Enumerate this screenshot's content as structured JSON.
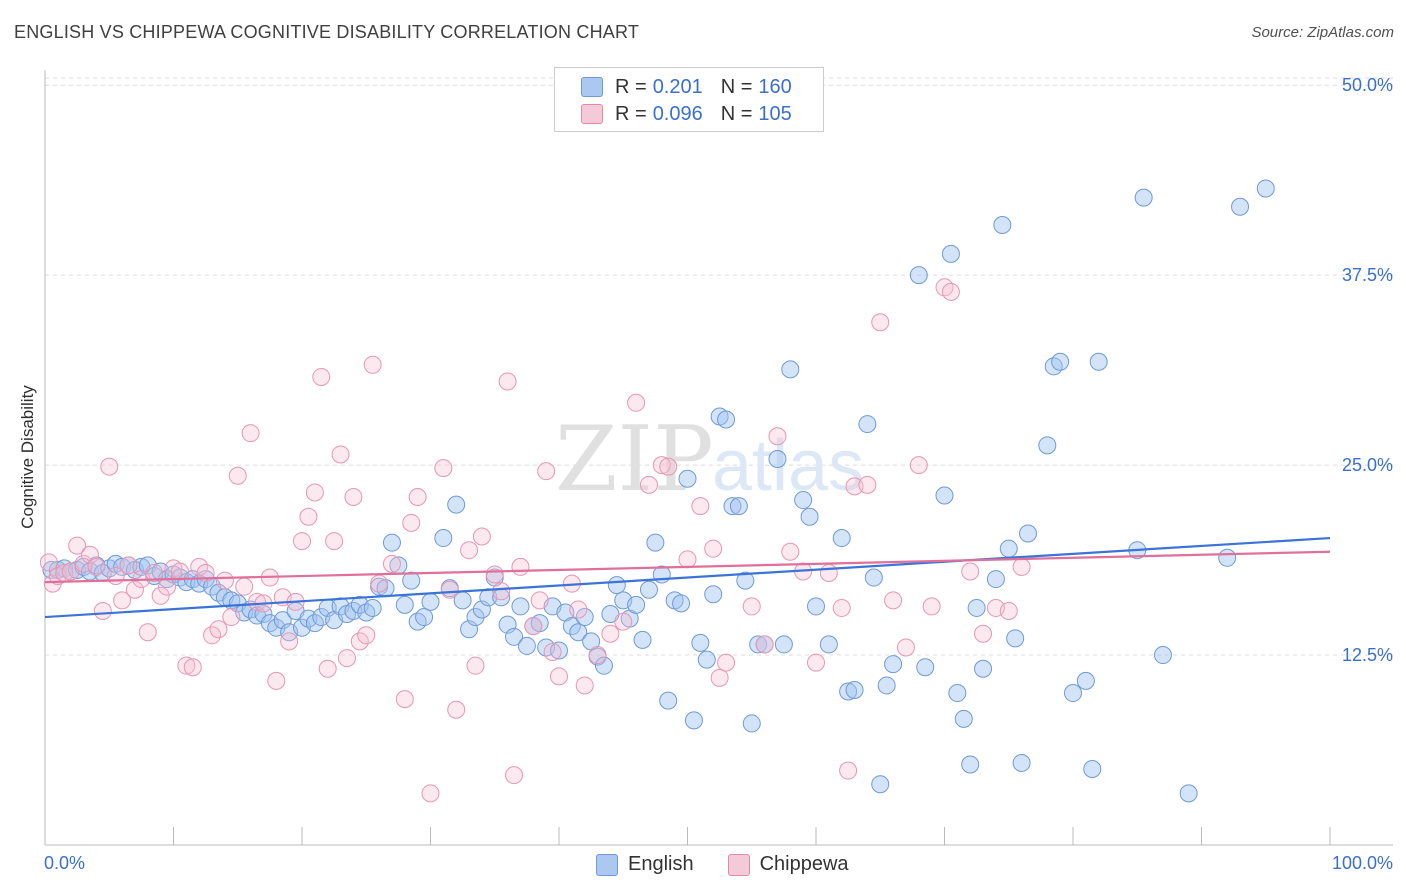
{
  "header": {
    "title": "ENGLISH VS CHIPPEWA COGNITIVE DISABILITY CORRELATION CHART",
    "source": "Source: ZipAtlas.com"
  },
  "watermark": {
    "text_zip": "ZIP",
    "text_atlas": "atlas"
  },
  "legend": {
    "rows": [
      {
        "r_label": "R =",
        "r_value": "0.201",
        "n_label": "N =",
        "n_value": "160",
        "color": "#aac8f0"
      },
      {
        "r_label": "R =",
        "r_value": "0.096",
        "n_label": "N =",
        "n_value": "105",
        "color": "#f5b8cc"
      }
    ]
  },
  "bottom_legend": [
    {
      "label": "English",
      "color": "#aac8f0"
    },
    {
      "label": "Chippewa",
      "color": "#f5b8cc"
    }
  ],
  "chart_data": {
    "type": "scatter",
    "title": "ENGLISH VS CHIPPEWA COGNITIVE DISABILITY CORRELATION CHART",
    "ylabel": "Cognitive Disability",
    "xlabel": "",
    "xlim": [
      0,
      100
    ],
    "ylim": [
      0,
      51
    ],
    "x_tick_labels": [
      "0.0%",
      "100.0%"
    ],
    "y_ticks": [
      12.5,
      25.0,
      37.5,
      50.0
    ],
    "y_tick_labels": [
      "12.5%",
      "25.0%",
      "37.5%",
      "50.0%"
    ],
    "grid": "horizontal dashed",
    "colors": {
      "english": "#3a74d8",
      "chippewa": "#e0709a",
      "axis_text": "#3a6fd0"
    },
    "series": [
      {
        "name": "English",
        "trend": {
          "x": [
            0,
            100
          ],
          "y": [
            15.0,
            20.2
          ]
        },
        "points": [
          [
            0.5,
            18.1
          ],
          [
            1,
            18.1
          ],
          [
            1.5,
            18.2
          ],
          [
            2,
            18.0
          ],
          [
            2.5,
            18.1
          ],
          [
            3,
            18.3
          ],
          [
            3.5,
            18.0
          ],
          [
            4,
            18.4
          ],
          [
            4.5,
            17.9
          ],
          [
            5,
            18.2
          ],
          [
            5.5,
            18.5
          ],
          [
            6,
            18.3
          ],
          [
            6.5,
            18.4
          ],
          [
            7,
            18.1
          ],
          [
            7.5,
            18.3
          ],
          [
            8,
            18.4
          ],
          [
            8.5,
            17.7
          ],
          [
            9,
            18.0
          ],
          [
            9.5,
            17.5
          ],
          [
            10,
            17.8
          ],
          [
            10.5,
            17.6
          ],
          [
            11,
            17.3
          ],
          [
            11.5,
            17.5
          ],
          [
            12,
            17.2
          ],
          [
            12.5,
            17.5
          ],
          [
            13,
            17.0
          ],
          [
            13.5,
            16.6
          ],
          [
            14,
            16.3
          ],
          [
            14.5,
            16.1
          ],
          [
            15,
            15.9
          ],
          [
            15.5,
            15.3
          ],
          [
            16,
            15.5
          ],
          [
            16.5,
            15.1
          ],
          [
            17,
            15.2
          ],
          [
            17.5,
            14.6
          ],
          [
            18,
            14.3
          ],
          [
            18.5,
            14.8
          ],
          [
            19,
            14.0
          ],
          [
            19.5,
            15.4
          ],
          [
            20,
            14.3
          ],
          [
            20.5,
            14.9
          ],
          [
            21,
            14.6
          ],
          [
            21.5,
            15.0
          ],
          [
            22,
            15.6
          ],
          [
            22.5,
            14.8
          ],
          [
            23,
            15.7
          ],
          [
            23.5,
            15.2
          ],
          [
            24,
            15.4
          ],
          [
            24.5,
            15.8
          ],
          [
            25,
            15.3
          ],
          [
            25.5,
            15.6
          ],
          [
            26,
            17.0
          ],
          [
            26.5,
            16.9
          ],
          [
            27,
            19.9
          ],
          [
            27.5,
            18.4
          ],
          [
            28,
            15.8
          ],
          [
            28.5,
            17.4
          ],
          [
            29,
            14.7
          ],
          [
            29.5,
            15.0
          ],
          [
            30,
            16.0
          ],
          [
            31,
            20.2
          ],
          [
            31.5,
            16.9
          ],
          [
            32,
            22.4
          ],
          [
            32.5,
            16.1
          ],
          [
            33,
            14.2
          ],
          [
            33.5,
            15.0
          ],
          [
            34,
            15.5
          ],
          [
            34.5,
            16.3
          ],
          [
            35,
            17.6
          ],
          [
            35.5,
            16.3
          ],
          [
            36,
            14.5
          ],
          [
            36.5,
            13.7
          ],
          [
            37,
            15.7
          ],
          [
            37.5,
            13.1
          ],
          [
            38,
            14.4
          ],
          [
            38.5,
            14.6
          ],
          [
            39,
            13.0
          ],
          [
            39.5,
            15.7
          ],
          [
            40,
            12.8
          ],
          [
            40.5,
            15.3
          ],
          [
            41,
            14.4
          ],
          [
            41.5,
            14.0
          ],
          [
            42,
            15.0
          ],
          [
            42.5,
            13.4
          ],
          [
            43,
            12.4
          ],
          [
            43.5,
            11.8
          ],
          [
            44,
            15.2
          ],
          [
            44.5,
            17.1
          ],
          [
            45,
            16.1
          ],
          [
            45.5,
            14.9
          ],
          [
            46,
            15.8
          ],
          [
            46.5,
            13.5
          ],
          [
            47,
            16.8
          ],
          [
            47.5,
            19.9
          ],
          [
            48,
            17.8
          ],
          [
            48.5,
            9.5
          ],
          [
            49,
            16.1
          ],
          [
            49.5,
            15.9
          ],
          [
            50,
            24.1
          ],
          [
            50.5,
            8.2
          ],
          [
            51,
            13.3
          ],
          [
            51.5,
            12.2
          ],
          [
            52,
            16.5
          ],
          [
            52.5,
            28.2
          ],
          [
            53,
            28.0
          ],
          [
            53.5,
            22.3
          ],
          [
            54,
            22.3
          ],
          [
            54.5,
            17.4
          ],
          [
            55,
            8.0
          ],
          [
            55.5,
            13.2
          ],
          [
            56,
            13.2
          ],
          [
            57,
            25.4
          ],
          [
            57.5,
            13.2
          ],
          [
            58,
            31.3
          ],
          [
            59,
            22.7
          ],
          [
            59.5,
            21.6
          ],
          [
            60,
            15.7
          ],
          [
            61,
            13.2
          ],
          [
            62,
            20.2
          ],
          [
            62.5,
            10.1
          ],
          [
            63,
            10.2
          ],
          [
            64,
            27.7
          ],
          [
            64.5,
            17.6
          ],
          [
            65,
            4.0
          ],
          [
            65.5,
            10.5
          ],
          [
            66,
            11.9
          ],
          [
            68,
            37.5
          ],
          [
            68.5,
            11.7
          ],
          [
            70,
            23.0
          ],
          [
            70.5,
            38.9
          ],
          [
            71,
            10.0
          ],
          [
            71.5,
            8.3
          ],
          [
            72,
            5.3
          ],
          [
            72.5,
            15.6
          ],
          [
            73,
            11.6
          ],
          [
            74,
            17.5
          ],
          [
            74.5,
            40.8
          ],
          [
            75,
            19.5
          ],
          [
            75.5,
            13.6
          ],
          [
            76,
            5.4
          ],
          [
            76.5,
            20.5
          ],
          [
            78,
            26.3
          ],
          [
            78.5,
            31.5
          ],
          [
            79,
            31.8
          ],
          [
            80,
            10.0
          ],
          [
            81,
            10.8
          ],
          [
            81.5,
            5.0
          ],
          [
            82,
            31.8
          ],
          [
            85,
            19.4
          ],
          [
            85.5,
            42.6
          ],
          [
            87,
            12.5
          ],
          [
            89,
            3.4
          ],
          [
            92,
            18.9
          ],
          [
            93,
            42.0
          ],
          [
            95,
            43.2
          ]
        ]
      },
      {
        "name": "Chippewa",
        "trend": {
          "x": [
            0,
            100
          ],
          "y": [
            17.3,
            19.3
          ]
        },
        "points": [
          [
            0.3,
            18.6
          ],
          [
            0.6,
            17.2
          ],
          [
            1,
            17.7
          ],
          [
            1.5,
            17.9
          ],
          [
            2,
            18.0
          ],
          [
            2.5,
            19.7
          ],
          [
            3,
            18.5
          ],
          [
            3.5,
            19.1
          ],
          [
            4,
            18.3
          ],
          [
            4.5,
            15.4
          ],
          [
            5,
            24.9
          ],
          [
            5.5,
            17.7
          ],
          [
            6,
            16.1
          ],
          [
            6.5,
            18.4
          ],
          [
            7,
            16.8
          ],
          [
            7.5,
            17.5
          ],
          [
            8,
            14.0
          ],
          [
            8.5,
            17.9
          ],
          [
            9,
            16.4
          ],
          [
            9.5,
            17.0
          ],
          [
            10,
            18.2
          ],
          [
            10.5,
            18.0
          ],
          [
            11,
            11.8
          ],
          [
            11.5,
            11.7
          ],
          [
            12,
            18.3
          ],
          [
            12.5,
            17.9
          ],
          [
            13,
            13.8
          ],
          [
            13.5,
            14.2
          ],
          [
            14,
            17.4
          ],
          [
            14.5,
            15.0
          ],
          [
            15,
            24.3
          ],
          [
            15.5,
            17.0
          ],
          [
            16,
            27.1
          ],
          [
            16.5,
            16.0
          ],
          [
            17,
            15.9
          ],
          [
            17.5,
            17.6
          ],
          [
            18,
            10.8
          ],
          [
            18.5,
            16.3
          ],
          [
            19,
            13.4
          ],
          [
            19.5,
            16.0
          ],
          [
            20,
            20.0
          ],
          [
            20.5,
            21.6
          ],
          [
            21,
            23.2
          ],
          [
            21.5,
            30.8
          ],
          [
            22,
            11.6
          ],
          [
            22.5,
            20.0
          ],
          [
            23,
            25.7
          ],
          [
            23.5,
            12.3
          ],
          [
            24,
            22.9
          ],
          [
            24.5,
            13.4
          ],
          [
            25,
            13.8
          ],
          [
            25.5,
            31.6
          ],
          [
            26,
            17.2
          ],
          [
            27,
            18.5
          ],
          [
            28,
            9.6
          ],
          [
            28.5,
            21.2
          ],
          [
            29,
            22.9
          ],
          [
            30,
            3.4
          ],
          [
            31,
            24.8
          ],
          [
            31.5,
            16.8
          ],
          [
            32,
            8.9
          ],
          [
            33,
            19.4
          ],
          [
            33.5,
            11.8
          ],
          [
            34,
            20.3
          ],
          [
            35,
            17.8
          ],
          [
            35.5,
            16.7
          ],
          [
            36,
            30.5
          ],
          [
            36.5,
            4.6
          ],
          [
            37,
            18.3
          ],
          [
            38,
            14.4
          ],
          [
            38.5,
            16.1
          ],
          [
            39,
            24.6
          ],
          [
            39.5,
            12.7
          ],
          [
            40,
            11.1
          ],
          [
            41,
            17.2
          ],
          [
            41.5,
            15.5
          ],
          [
            42,
            10.5
          ],
          [
            43,
            12.5
          ],
          [
            44,
            13.9
          ],
          [
            45,
            14.7
          ],
          [
            46,
            29.1
          ],
          [
            47,
            23.7
          ],
          [
            48,
            25.0
          ],
          [
            48.5,
            24.9
          ],
          [
            50,
            18.8
          ],
          [
            51,
            22.3
          ],
          [
            52,
            19.5
          ],
          [
            52.5,
            11.0
          ],
          [
            53,
            12.0
          ],
          [
            55,
            15.7
          ],
          [
            56,
            13.2
          ],
          [
            57,
            26.9
          ],
          [
            58,
            19.3
          ],
          [
            59,
            18.0
          ],
          [
            60,
            12.0
          ],
          [
            61,
            17.9
          ],
          [
            62,
            15.6
          ],
          [
            62.5,
            4.9
          ],
          [
            63,
            23.6
          ],
          [
            64,
            23.7
          ],
          [
            65,
            34.4
          ],
          [
            66,
            16.1
          ],
          [
            67,
            13.0
          ],
          [
            68,
            25.0
          ],
          [
            69,
            15.7
          ],
          [
            70,
            36.7
          ],
          [
            70.5,
            36.4
          ],
          [
            72,
            18.0
          ],
          [
            73,
            13.9
          ],
          [
            74,
            15.6
          ],
          [
            75,
            15.4
          ],
          [
            76,
            18.3
          ]
        ]
      }
    ]
  }
}
